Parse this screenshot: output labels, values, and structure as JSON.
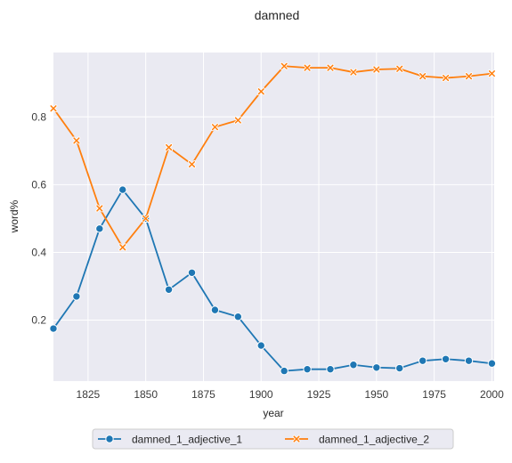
{
  "chart_data": {
    "type": "line",
    "title": "damned",
    "xlabel": "year",
    "ylabel": "word%",
    "xlim": [
      1810,
      2001
    ],
    "ylim": [
      0.02,
      0.99
    ],
    "x_ticks": [
      1825,
      1850,
      1875,
      1900,
      1925,
      1950,
      1975,
      2000
    ],
    "x_tick_labels": [
      "1825",
      "1850",
      "1875",
      "1900",
      "1925",
      "1950",
      "1975",
      "2000"
    ],
    "y_ticks": [
      0.2,
      0.4,
      0.6,
      0.8
    ],
    "y_tick_labels": [
      "0.2",
      "0.4",
      "0.6",
      "0.8"
    ],
    "grid": true,
    "legend_position": "bottom-center-outside",
    "x": [
      1810,
      1820,
      1830,
      1840,
      1850,
      1860,
      1870,
      1880,
      1890,
      1900,
      1910,
      1920,
      1930,
      1940,
      1950,
      1960,
      1970,
      1980,
      1990,
      2000
    ],
    "series": [
      {
        "name": "damned_1_adjective_1",
        "color": "#1f77b4",
        "marker": "circle",
        "values": [
          0.175,
          0.27,
          0.47,
          0.585,
          0.5,
          0.29,
          0.34,
          0.23,
          0.21,
          0.125,
          0.05,
          0.055,
          0.055,
          0.068,
          0.06,
          0.058,
          0.08,
          0.085,
          0.08,
          0.072
        ]
      },
      {
        "name": "damned_1_adjective_2",
        "color": "#ff7f0e",
        "marker": "x",
        "values": [
          0.825,
          0.73,
          0.53,
          0.415,
          0.5,
          0.71,
          0.66,
          0.77,
          0.79,
          0.875,
          0.95,
          0.945,
          0.945,
          0.932,
          0.94,
          0.942,
          0.92,
          0.915,
          0.92,
          0.928
        ]
      }
    ]
  },
  "colors": {
    "plot_background": "#eaeaf2",
    "grid": "#ffffff",
    "text": "#262626"
  }
}
